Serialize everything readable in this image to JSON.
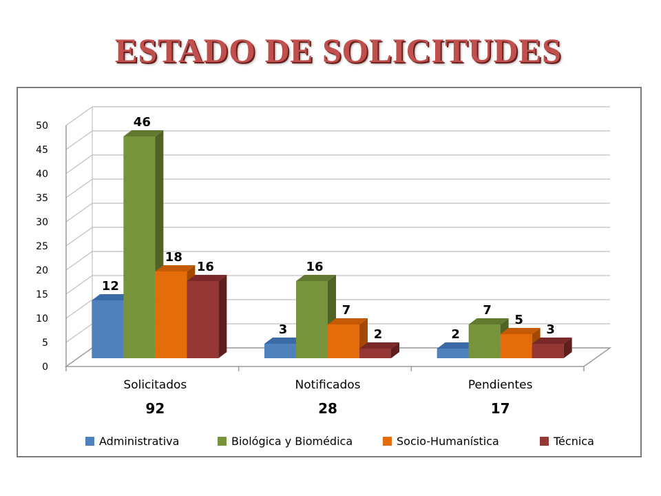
{
  "title": "ESTADO DE SOLICITUDES",
  "chart_data": {
    "type": "bar",
    "categories": [
      "Solicitados",
      "Notificados",
      "Pendientes"
    ],
    "category_totals": [
      "92",
      "28",
      "17"
    ],
    "series": [
      {
        "name": "Administrativa",
        "values": [
          12,
          3,
          2
        ],
        "color": "#4f81bd",
        "side_color": "#2f5f96",
        "top_color": "#3b6aa6"
      },
      {
        "name": "Biológica y Biomédica",
        "values": [
          46,
          16,
          7
        ],
        "color": "#77933c",
        "side_color": "#4f6326",
        "top_color": "#617a2f"
      },
      {
        "name": "Socio-Humanística",
        "values": [
          18,
          7,
          5
        ],
        "color": "#e46c0a",
        "side_color": "#a44a00",
        "top_color": "#c55a05"
      },
      {
        "name": "Técnica",
        "values": [
          16,
          2,
          3
        ],
        "color": "#953735",
        "side_color": "#5e1f1e",
        "top_color": "#7a2928"
      }
    ],
    "ylim": [
      0,
      50
    ],
    "yticks": [
      "0",
      "5",
      "10",
      "15",
      "20",
      "25",
      "30",
      "35",
      "40",
      "45",
      "50"
    ],
    "grid": true,
    "legend_position": "bottom",
    "data_labels": true,
    "style": "3d-clustered-column"
  }
}
